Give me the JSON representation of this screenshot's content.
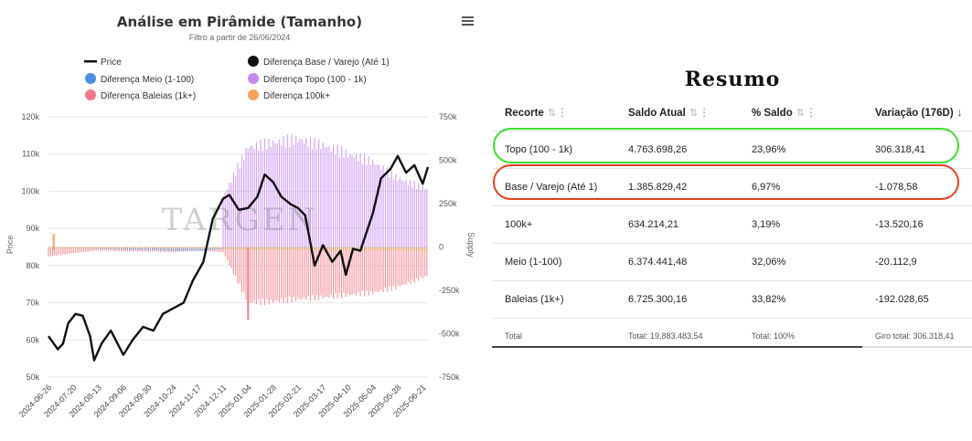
{
  "chart_data": {
    "type": "bar+line",
    "title": "Análise em Pirâmide (Tamanho)",
    "subtitle": "Filtro a partir de 26/06/2024",
    "watermark": "TARGEN",
    "ylabel_left": "Price",
    "ylabel_right": "Supply",
    "yticks_left": [
      "120k",
      "110k",
      "100k",
      "90k",
      "80k",
      "70k",
      "60k",
      "50k"
    ],
    "yticks_right": [
      "750k",
      "500k",
      "250k",
      "0",
      "-250k",
      "-500k",
      "-750k"
    ],
    "ylim_price": [
      50000,
      120000
    ],
    "ylim_supply": [
      -750000,
      750000
    ],
    "x_tick_labels": [
      "2024-06-26",
      "2024-07-20",
      "2024-08-13",
      "2024-09-06",
      "2024-09-30",
      "2024-10-24",
      "2024-11-17",
      "2024-12-11",
      "2025-01-04",
      "2025-01-28",
      "2025-02-21",
      "2025-03-17",
      "2025-04-10",
      "2025-05-04",
      "2025-05-28",
      "2025-06-21"
    ],
    "legend": [
      {
        "name": "Price",
        "color": "#111111",
        "kind": "line"
      },
      {
        "name": "Diferença Base / Varejo (Até 1)",
        "color": "#111111",
        "kind": "dot"
      },
      {
        "name": "Diferença Meio (1-100)",
        "color": "#4a90e2",
        "kind": "dot"
      },
      {
        "name": "Diferença Topo (100 - 1k)",
        "color": "#c58af0",
        "kind": "dot"
      },
      {
        "name": "Diferença Baleias (1k+)",
        "color": "#f07a8a",
        "kind": "dot"
      },
      {
        "name": "Diferença 100k+",
        "color": "#f5a55a",
        "kind": "dot"
      }
    ],
    "series": [
      {
        "name": "Price",
        "dates": [
          "2024-06-26",
          "2024-07-05",
          "2024-07-10",
          "2024-07-15",
          "2024-07-22",
          "2024-07-29",
          "2024-08-05",
          "2024-08-09",
          "2024-08-16",
          "2024-08-25",
          "2024-09-06",
          "2024-09-15",
          "2024-09-25",
          "2024-10-05",
          "2024-10-14",
          "2024-10-24",
          "2024-11-03",
          "2024-11-12",
          "2024-11-22",
          "2024-12-01",
          "2024-12-11",
          "2024-12-17",
          "2024-12-26",
          "2025-01-04",
          "2025-01-13",
          "2025-01-20",
          "2025-01-28",
          "2025-02-05",
          "2025-02-14",
          "2025-02-21",
          "2025-02-28",
          "2025-03-09",
          "2025-03-17",
          "2025-03-26",
          "2025-04-03",
          "2025-04-08",
          "2025-04-15",
          "2025-04-22",
          "2025-05-04",
          "2025-05-12",
          "2025-05-21",
          "2025-05-28",
          "2025-06-05",
          "2025-06-13",
          "2025-06-21",
          "2025-06-26"
        ],
        "values": [
          61000,
          57500,
          59000,
          64500,
          67000,
          66500,
          61000,
          54500,
          59000,
          62500,
          56000,
          60000,
          63500,
          62500,
          67000,
          68500,
          70000,
          76000,
          81000,
          92500,
          98000,
          99000,
          95000,
          95500,
          98500,
          104500,
          102500,
          98500,
          96500,
          95500,
          93500,
          80000,
          85500,
          81000,
          84000,
          77500,
          84500,
          84000,
          94000,
          103500,
          106000,
          109500,
          105000,
          107000,
          102000,
          106500
        ]
      },
      {
        "name": "Diferença Topo (100 - 1k)",
        "dates": [
          "2024-06-26",
          "2024-12-10",
          "2024-12-11",
          "2025-01-04",
          "2025-01-28",
          "2025-02-21",
          "2025-03-17",
          "2025-04-10",
          "2025-05-04",
          "2025-05-28",
          "2025-06-26"
        ],
        "values": [
          0,
          0,
          290000,
          575000,
          600000,
          620000,
          585000,
          535000,
          490000,
          395000,
          330000
        ]
      },
      {
        "name": "Diferença Baleias (1k+)",
        "dates": [
          "2024-06-26",
          "2024-07-20",
          "2024-08-13",
          "2024-09-06",
          "2024-09-30",
          "2024-10-24",
          "2024-11-17",
          "2024-12-11",
          "2025-01-04",
          "2025-01-28",
          "2025-02-21",
          "2025-03-17",
          "2025-04-10",
          "2025-05-04",
          "2025-05-28",
          "2025-06-26"
        ],
        "values": [
          -55000,
          -35000,
          -20000,
          -25000,
          -25000,
          -30000,
          -20000,
          -30000,
          -320000,
          -315000,
          -300000,
          -290000,
          -275000,
          -265000,
          -230000,
          -165000
        ]
      },
      {
        "name": "Diferença 100k+",
        "dates": [
          "2024-06-26",
          "2024-12-11",
          "2025-01-04",
          "2025-06-26"
        ],
        "values": [
          -8000,
          -10000,
          -20000,
          -25000
        ]
      },
      {
        "name": "Diferença Meio (1-100)",
        "dates": [
          "2024-06-26",
          "2024-11-17",
          "2024-12-11",
          "2025-06-26"
        ],
        "values": [
          -4000,
          -25000,
          -12000,
          -8000
        ]
      },
      {
        "name": "Diferença Base / Varejo (Até 1)",
        "dates": [
          "2024-06-26",
          "2025-06-26"
        ],
        "values": [
          -1000,
          -1000
        ]
      }
    ]
  },
  "summary": {
    "title": "Resumo",
    "columns": [
      "Recorte",
      "Saldo Atual",
      "% Saldo",
      "Variação (176D)"
    ],
    "rows": [
      {
        "recorte": "Topo (100 - 1k)",
        "saldo": "4.763.698,26",
        "pct": "23,96%",
        "variacao": "306.318,41",
        "highlight": "#3ddf2e"
      },
      {
        "recorte": "Base / Varejo (Até 1)",
        "saldo": "1.385.829,42",
        "pct": "6,97%",
        "variacao": "-1.078,58",
        "highlight": "#e8401c"
      },
      {
        "recorte": "100k+",
        "saldo": "634.214,21",
        "pct": "3,19%",
        "variacao": "-13.520,16"
      },
      {
        "recorte": "Meio (1-100)",
        "saldo": "6.374.441,48",
        "pct": "32,06%",
        "variacao": "-20.112,9"
      },
      {
        "recorte": "Baleias (1k+)",
        "saldo": "6.725.300,16",
        "pct": "33,82%",
        "variacao": "-192.028,65"
      }
    ],
    "total": {
      "recorte": "Total",
      "saldo": "Total: 19.883.483,54",
      "pct": "Total: 100%",
      "variacao": "Giro total: 306.318,41"
    }
  }
}
